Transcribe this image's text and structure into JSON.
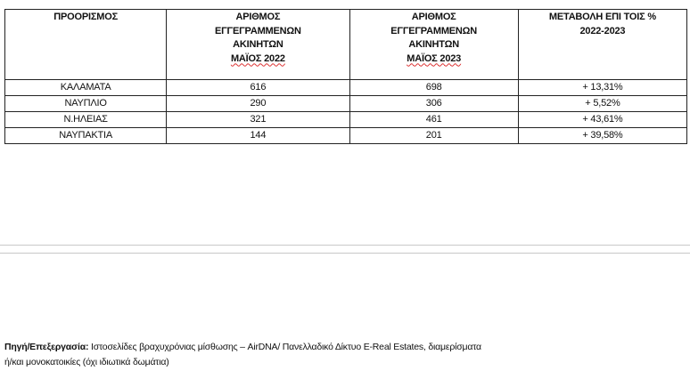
{
  "table": {
    "headers": [
      {
        "lines": [
          "ΠΡΟΟΡΙΣΜΟΣ"
        ]
      },
      {
        "lines": [
          "ΑΡΙΘΜΟΣ",
          "ΕΓΓΕΓΡΑΜΜΕΝΩΝ",
          "ΑΚΙΝΗΤΩΝ",
          "ΜΑΪΟΣ 2022"
        ]
      },
      {
        "lines": [
          "ΑΡΙΘΜΟΣ",
          "ΕΓΓΕΓΡΑΜΜΕΝΩΝ",
          "ΑΚΙΝΗΤΩΝ",
          "ΜΑΪΟΣ 2023"
        ]
      },
      {
        "lines": [
          "ΜΕΤΑΒΟΛΗ ΕΠΙ ΤΟΙΣ %",
          "2022-2023"
        ]
      }
    ],
    "rows": [
      [
        "ΚΑΛΑΜΑΤΑ",
        "616",
        "698",
        "+ 13,31%"
      ],
      [
        "ΝΑΥΠΛΙΟ",
        "290",
        "306",
        "+ 5,52%"
      ],
      [
        "Ν.ΗΛΕΙΑΣ",
        "321",
        "461",
        "+ 43,61%"
      ],
      [
        "ΝΑΥΠΑΚΤΙΑ",
        "144",
        "201",
        "+ 39,58%"
      ]
    ]
  },
  "footer": {
    "label": "Πηγή/Επεξεργασία:",
    "text_line1": " Ιστοσελίδες βραχυχρόνιας μίσθωσης – AirDNA/ Πανελλαδικό Δίκτυο E-Real Estates, διαμερίσματα",
    "text_line2": "ή/και μονοκατοικίες (όχι ιδιωτικά δωμάτια)"
  }
}
